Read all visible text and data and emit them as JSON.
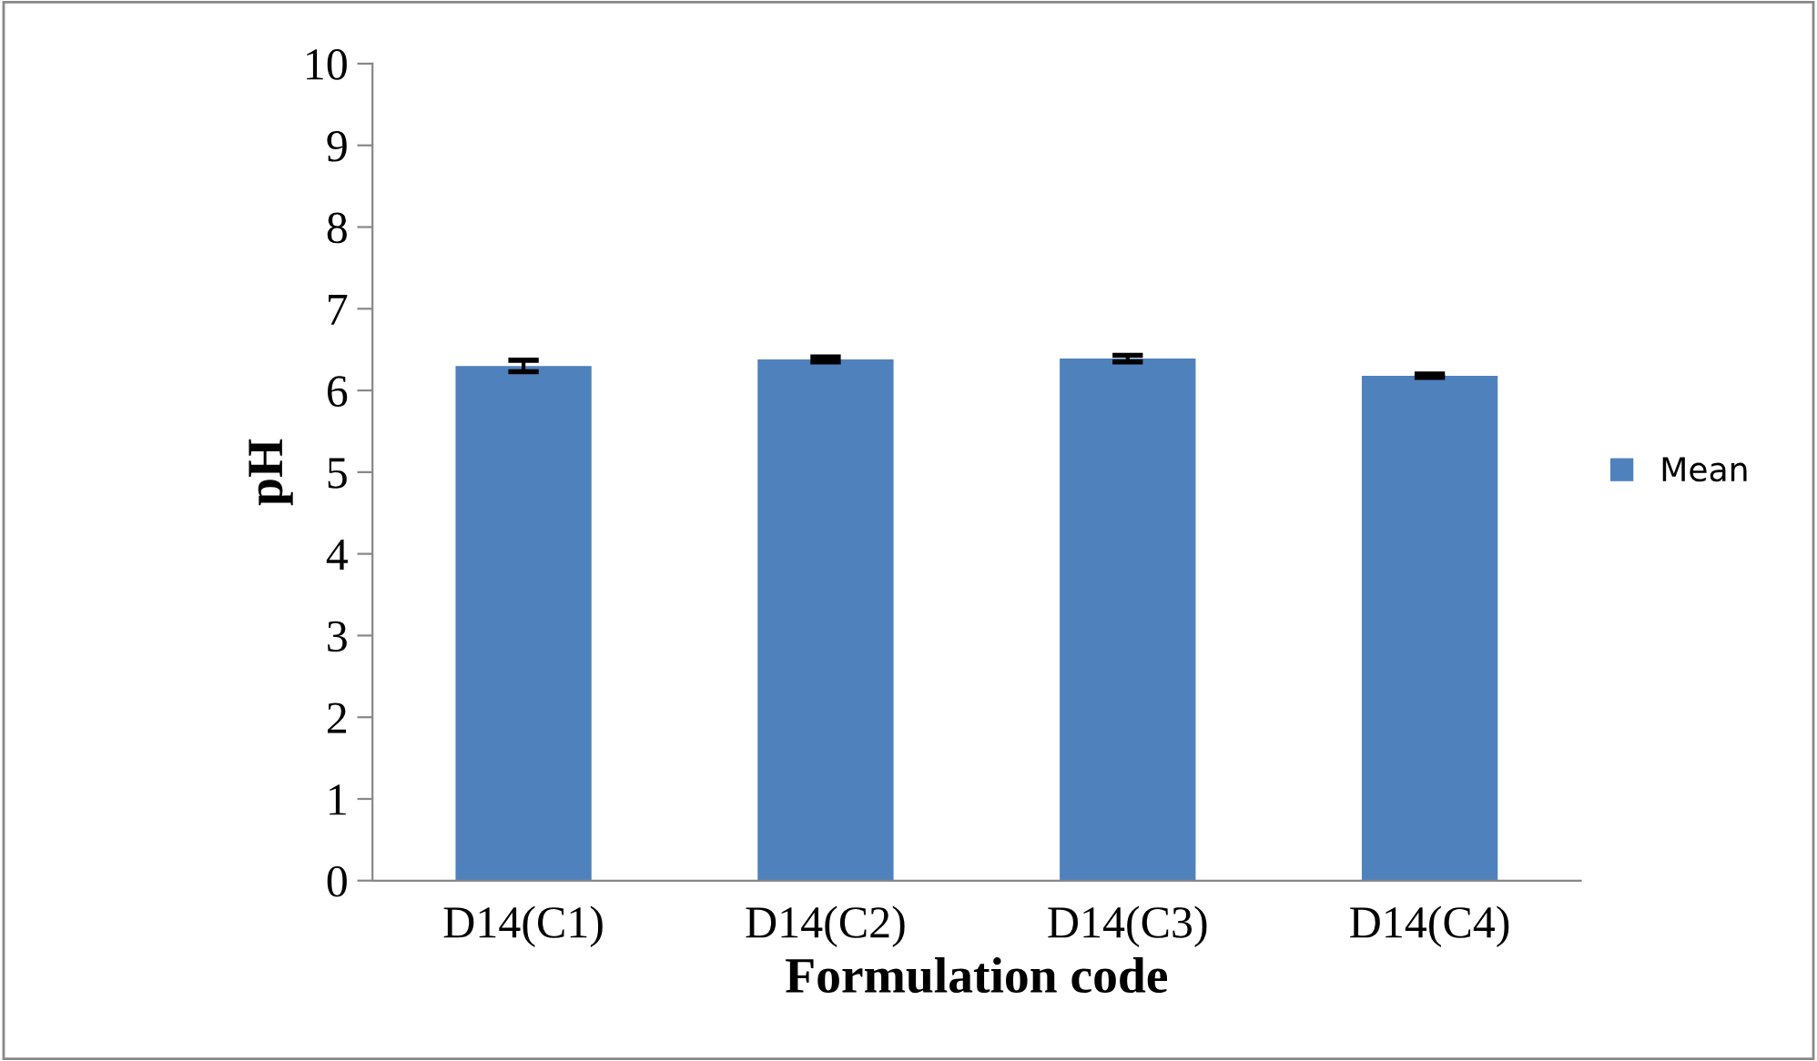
{
  "chart_data": {
    "type": "bar",
    "xlabel": "Formulation code",
    "ylabel": "pH",
    "categories": [
      "D14(C1)",
      "D14(C2)",
      "D14(C3)",
      "D14(C4)"
    ],
    "series": [
      {
        "name": "Mean",
        "color": "#4f81bd",
        "values": [
          6.3,
          6.38,
          6.39,
          6.18
        ],
        "errors": [
          0.07,
          0.03,
          0.04,
          0.02
        ]
      }
    ],
    "ylim": [
      0,
      10
    ],
    "yticks": [
      0,
      1,
      2,
      3,
      4,
      5,
      6,
      7,
      8,
      9,
      10
    ],
    "grid": false,
    "legend": "right"
  }
}
